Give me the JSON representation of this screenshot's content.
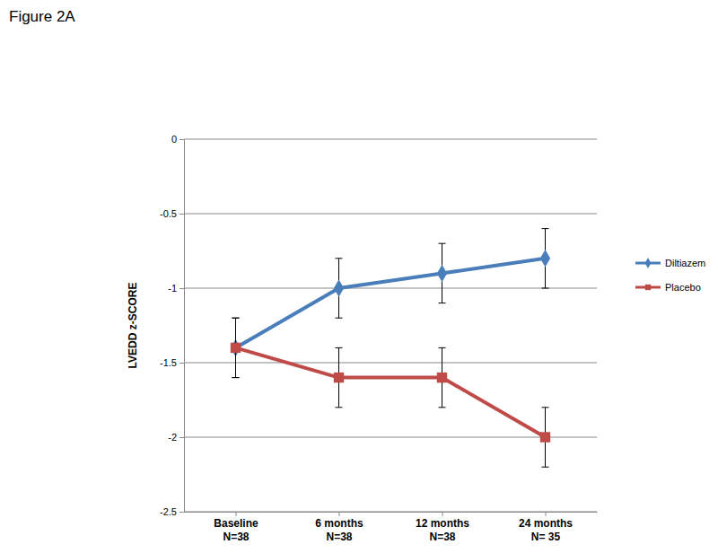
{
  "chart_data": {
    "type": "line",
    "title": "Figure 2A",
    "y_label": "LVEDD z-SCORE",
    "categories": [
      "Baseline\nN=38",
      "6 months\nN=38",
      "12 months\nN=38",
      "24 months\nN= 35"
    ],
    "series": [
      {
        "name": "Diltiazem",
        "color": "#4a7ebb",
        "marker": "diamond",
        "values": [
          -1.4,
          -1.0,
          -0.9,
          -0.8
        ],
        "errors": [
          0.2,
          0.2,
          0.2,
          0.2
        ]
      },
      {
        "name": "Placebo",
        "color": "#be4b48",
        "marker": "square",
        "values": [
          -1.4,
          -1.6,
          -1.6,
          -2.0
        ],
        "errors": [
          0.2,
          0.2,
          0.2,
          0.2
        ]
      }
    ],
    "ylim": [
      -2.5,
      0
    ],
    "yticks": [
      0,
      -0.5,
      -1,
      -1.5,
      -2,
      -2.5
    ],
    "grid": true,
    "legend": "right"
  }
}
